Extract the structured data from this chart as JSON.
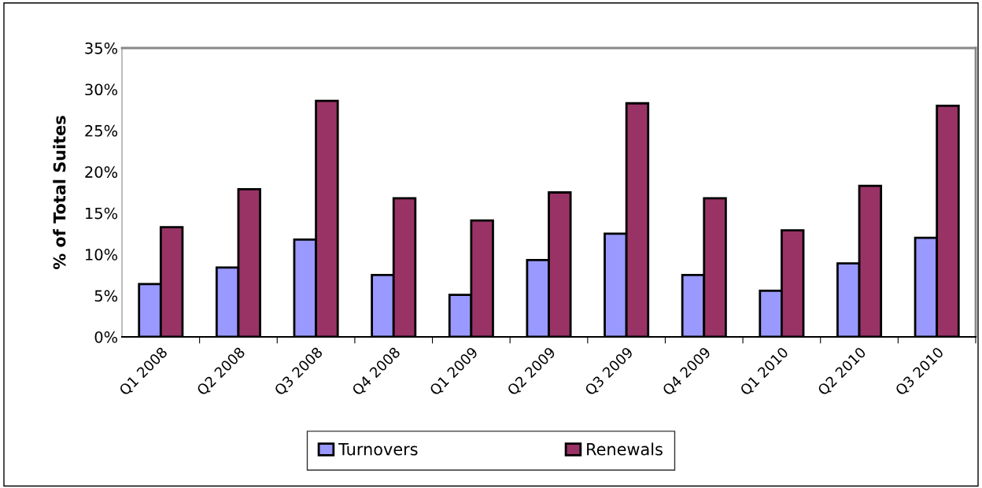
{
  "chart_data": {
    "type": "bar",
    "ylabel": "% of Total Suites",
    "categories": [
      "Q1 2008",
      "Q2 2008",
      "Q3 2008",
      "Q4 2008",
      "Q1 2009",
      "Q2 2009",
      "Q3 2009",
      "Q4 2009",
      "Q1 2010",
      "Q2 2010",
      "Q3 2010"
    ],
    "series": [
      {
        "name": "Turnovers",
        "color": "#9999ff",
        "values": [
          6.4,
          8.4,
          11.8,
          7.5,
          5.1,
          9.3,
          12.5,
          7.5,
          5.6,
          8.9,
          12.0
        ]
      },
      {
        "name": "Renewals",
        "color": "#993366",
        "values": [
          13.3,
          17.9,
          28.6,
          16.8,
          14.1,
          17.5,
          28.3,
          16.8,
          12.9,
          18.3,
          28.0
        ]
      }
    ],
    "ylim": [
      0,
      35
    ],
    "yticks": [
      {
        "value": 0,
        "label": "0%"
      },
      {
        "value": 5,
        "label": "5%"
      },
      {
        "value": 10,
        "label": "10%"
      },
      {
        "value": 15,
        "label": "15%"
      },
      {
        "value": 20,
        "label": "20%"
      },
      {
        "value": 25,
        "label": "25%"
      },
      {
        "value": 30,
        "label": "30%"
      },
      {
        "value": 35,
        "label": "35%"
      }
    ],
    "grid": false,
    "legend": "bottom"
  }
}
